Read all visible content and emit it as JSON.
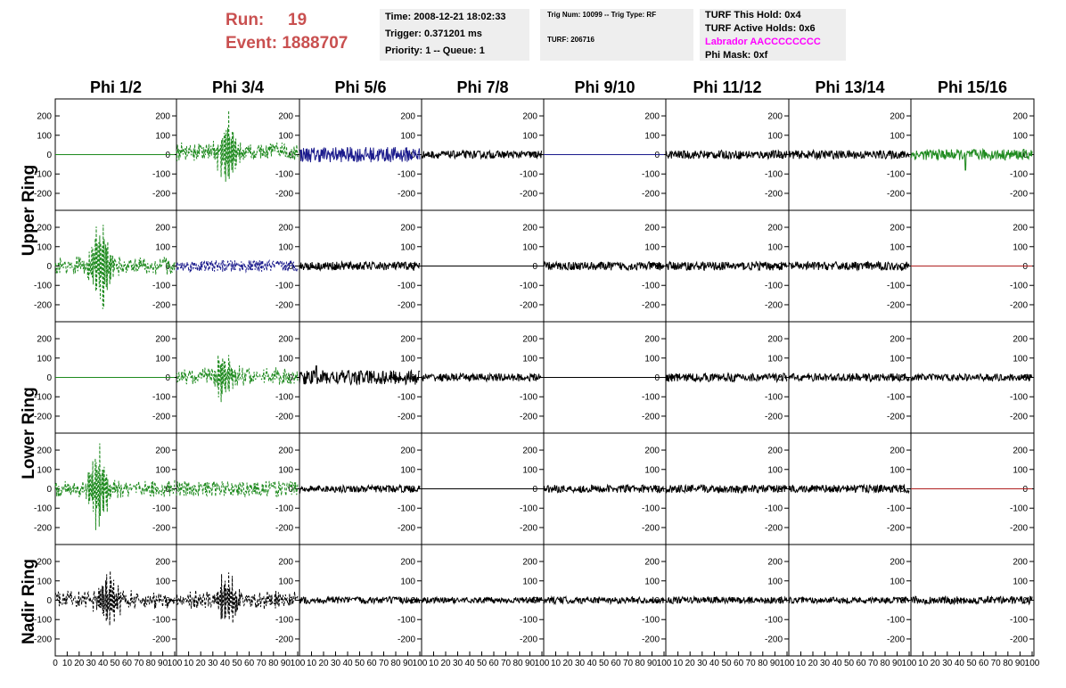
{
  "header": {
    "run_label": "Run:",
    "run_value": "19",
    "event_label": "Event:",
    "event_value": "1888707"
  },
  "info_box_1": {
    "time": "Time: 2008-12-21 18:02:33",
    "trigger": "Trigger: 0.371201 ms",
    "priority": "Priority: 1 -- Queue: 1"
  },
  "info_box_2": {
    "trig": "Trig Num: 10099 -- Trig Type: RF",
    "turf": "TURF: 206716"
  },
  "info_box_3": {
    "this_hold": "TURF This Hold: 0x4",
    "active_holds": "TURF Active Holds: 0x6",
    "labrador": "Labrador AACCCCCCCC",
    "phi_mask": "Phi Mask: 0xf"
  },
  "colors": {
    "header_red": "#c95050",
    "green": "#1e8a1e",
    "blue": "#1a1a8c",
    "black": "#000000",
    "red": "#b02020",
    "magenta": "#ff00ff"
  },
  "chart_data": {
    "type": "line",
    "column_headers": [
      "Phi 1/2",
      "Phi 3/4",
      "Phi 5/6",
      "Phi 7/8",
      "Phi 9/10",
      "Phi 11/12",
      "Phi 13/14",
      "Phi 15/16"
    ],
    "ring_labels": [
      "Upper Ring",
      "Lower Ring",
      "Nadir Ring"
    ],
    "xlim": [
      0,
      100
    ],
    "ylim": [
      -260,
      260
    ],
    "y_ticks": [
      "200",
      "100",
      "0",
      "-100",
      "-200"
    ],
    "x_tick_labels": [
      "0",
      "10",
      "20",
      "30",
      "40",
      "50",
      "60",
      "70",
      "80",
      "90",
      "100"
    ],
    "rows": [
      [
        {
          "color": "green",
          "style": "solid",
          "flat": true
        },
        {
          "color": "green",
          "style": "dashed",
          "baseline": 15,
          "pulse_center": 42,
          "pulse_max": 185
        },
        {
          "color": "blue",
          "style": "solid",
          "noise": 40
        },
        {
          "color": "black",
          "style": "solid",
          "noise": 20
        },
        {
          "color": "blue",
          "style": "solid",
          "flat": true
        },
        {
          "color": "black",
          "style": "solid",
          "noise": 22
        },
        {
          "color": "black",
          "style": "solid",
          "noise": 22
        },
        {
          "color": "green",
          "style": "solid",
          "noise": 28,
          "spike_at": 45,
          "spike_min": -80
        }
      ],
      [
        {
          "color": "green",
          "style": "dashed",
          "pulse_center": 38,
          "pulse_max": 245
        },
        {
          "color": "blue",
          "style": "dashed",
          "noise": 30
        },
        {
          "color": "black",
          "style": "solid",
          "noise": 22
        },
        {
          "color": "black",
          "style": "solid",
          "flat": true
        },
        {
          "color": "black",
          "style": "solid",
          "noise": 22
        },
        {
          "color": "black",
          "style": "solid",
          "noise": 22
        },
        {
          "color": "black",
          "style": "solid",
          "noise": 22
        },
        {
          "color": "red",
          "style": "solid",
          "flat": true
        }
      ],
      [
        {
          "color": "green",
          "style": "solid",
          "flat": true
        },
        {
          "color": "green",
          "style": "dashed",
          "baseline": 5,
          "pulse_center": 40,
          "pulse_max": 130
        },
        {
          "color": "black",
          "style": "solid",
          "noise": 38,
          "spike_at": 14,
          "spike_max": 60
        },
        {
          "color": "black",
          "style": "solid",
          "noise": 20
        },
        {
          "color": "black",
          "style": "solid",
          "flat": true
        },
        {
          "color": "black",
          "style": "solid",
          "noise": 22
        },
        {
          "color": "black",
          "style": "solid",
          "noise": 20
        },
        {
          "color": "black",
          "style": "solid",
          "noise": 18
        }
      ],
      [
        {
          "color": "green",
          "style": "dashed",
          "pulse_center": 36,
          "pulse_max": 235
        },
        {
          "color": "green",
          "style": "dashed",
          "noise": 40
        },
        {
          "color": "black",
          "style": "solid",
          "noise": 18
        },
        {
          "color": "black",
          "style": "solid",
          "flat": true
        },
        {
          "color": "black",
          "style": "solid",
          "noise": 20
        },
        {
          "color": "black",
          "style": "solid",
          "noise": 20
        },
        {
          "color": "black",
          "style": "solid",
          "noise": 20
        },
        {
          "color": "red",
          "style": "solid",
          "flat": true
        }
      ],
      [
        {
          "color": "black",
          "style": "dashed",
          "pulse_center": 45,
          "pulse_max": 150
        },
        {
          "color": "black",
          "style": "dashed",
          "pulse_center": 42,
          "pulse_max": 145
        },
        {
          "color": "black",
          "style": "solid",
          "noise": 18
        },
        {
          "color": "black",
          "style": "solid",
          "noise": 16
        },
        {
          "color": "black",
          "style": "solid",
          "noise": 18
        },
        {
          "color": "black",
          "style": "solid",
          "noise": 18
        },
        {
          "color": "black",
          "style": "solid",
          "noise": 16
        },
        {
          "color": "black",
          "style": "solid",
          "noise": 20
        }
      ]
    ]
  }
}
